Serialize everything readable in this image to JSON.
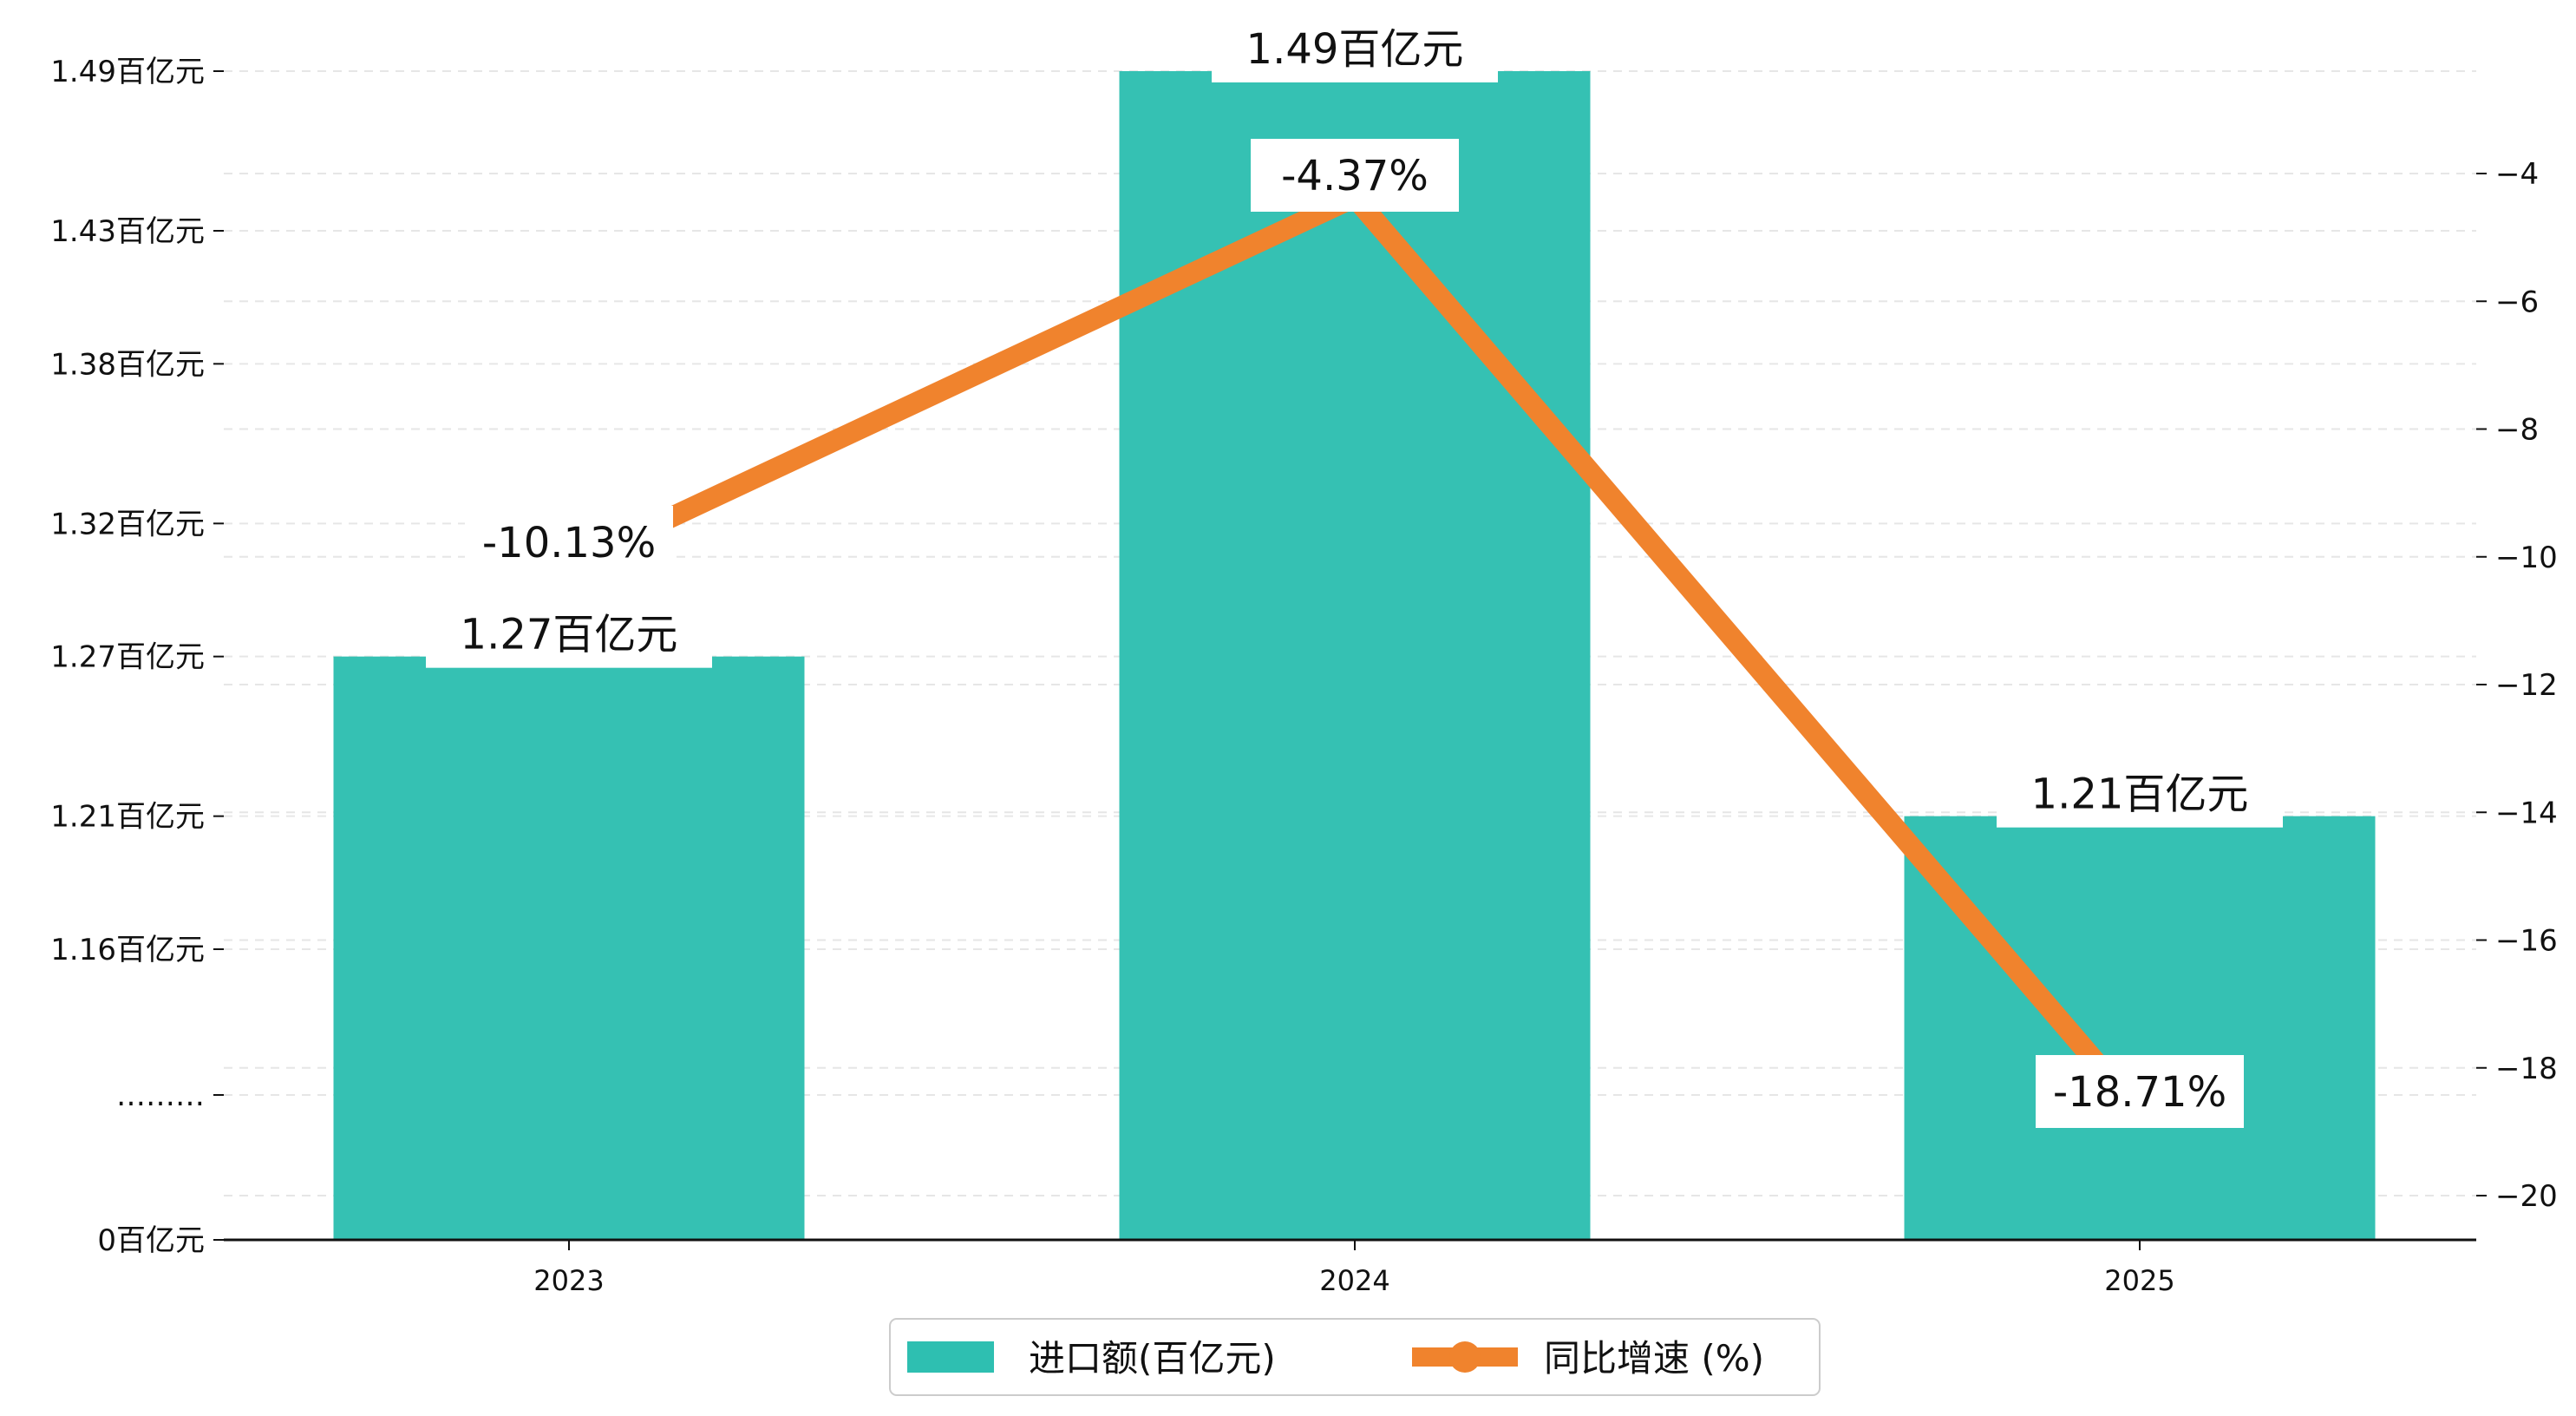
{
  "chart_data": {
    "type": "bar",
    "categories": [
      "2023",
      "2024",
      "2025"
    ],
    "series": [
      {
        "name": "进口额(百亿元)",
        "kind": "bar",
        "axis": "left",
        "color": "#2ebfb1",
        "values": [
          1.27,
          1.49,
          1.21
        ],
        "labels": [
          "1.27百亿元",
          "1.49百亿元",
          "1.21百亿元"
        ]
      },
      {
        "name": "同比增速 (%)",
        "kind": "line",
        "axis": "right",
        "color": "#f0832d",
        "values": [
          -10.13,
          -4.37,
          -18.71
        ],
        "labels": [
          "-10.13%",
          "-4.37%",
          "-18.71%"
        ]
      }
    ],
    "left_axis": {
      "ticks": [
        {
          "value": 0,
          "label": "0百亿元"
        },
        {
          "value": 1.105,
          "label": "………"
        },
        {
          "value": 1.16,
          "label": "1.16百亿元"
        },
        {
          "value": 1.21,
          "label": "1.21百亿元"
        },
        {
          "value": 1.27,
          "label": "1.27百亿元"
        },
        {
          "value": 1.32,
          "label": "1.32百亿元"
        },
        {
          "value": 1.38,
          "label": "1.38百亿元"
        },
        {
          "value": 1.43,
          "label": "1.43百亿元"
        },
        {
          "value": 1.49,
          "label": "1.49百亿元"
        }
      ],
      "broken": true
    },
    "right_axis": {
      "ylim": [
        -20.7,
        -2.4
      ],
      "ticks": [
        -4,
        -6,
        -8,
        -10,
        -12,
        -14,
        -16,
        -18,
        -20
      ]
    },
    "grid": "horizontal-dashed",
    "legend": "bottom-center"
  }
}
